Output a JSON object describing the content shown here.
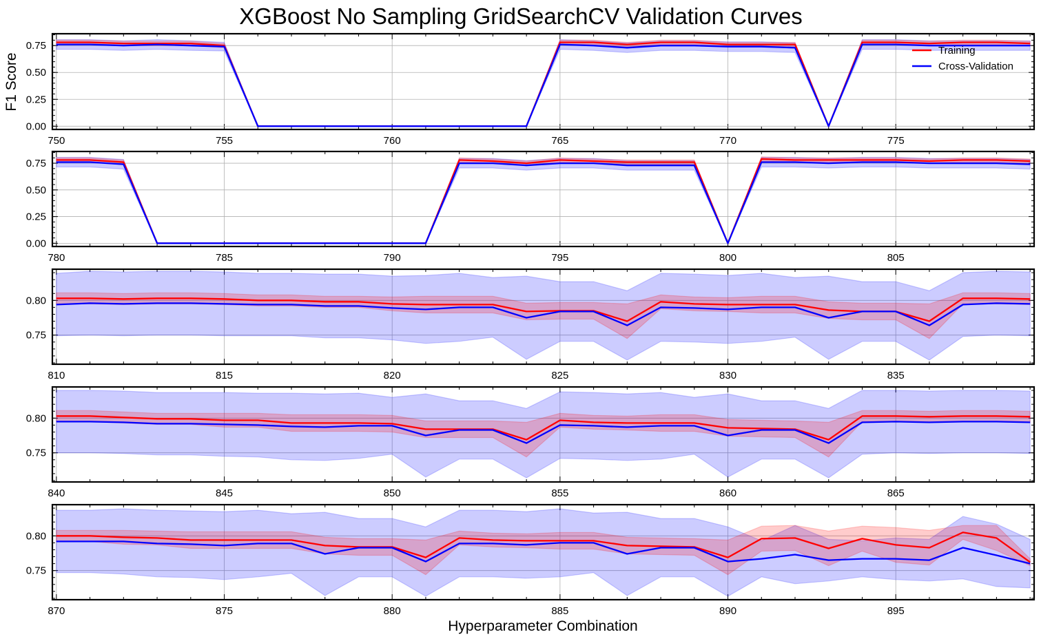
{
  "chart_data": {
    "type": "line",
    "title": "XGBoost No Sampling GridSearchCV Validation Curves",
    "xlabel": "Hyperparameter Combination",
    "ylabel": "F1 Score",
    "legend": {
      "placement": "top-right",
      "entries": [
        "Training",
        "Cross-Validation"
      ]
    },
    "colors": {
      "Training": "#ff0000",
      "Cross-Validation": "#0000ff"
    },
    "grid": true,
    "panels": [
      {
        "x_start": 750,
        "xticks": [
          750,
          755,
          760,
          765,
          770,
          775
        ],
        "ylim": [
          -0.03,
          0.86
        ],
        "yticks": [
          "0.00",
          "0.25",
          "0.50",
          "0.75"
        ],
        "series": [
          {
            "name": "Training",
            "values": [
              0.78,
              0.78,
              0.77,
              0.77,
              0.77,
              0.75,
              0,
              0,
              0,
              0,
              0,
              0,
              0,
              0,
              0,
              0.78,
              0.78,
              0.76,
              0.78,
              0.78,
              0.76,
              0.76,
              0.76,
              0,
              0.78,
              0.78,
              0.77,
              0.78,
              0.78,
              0.77
            ],
            "std": [
              0.02,
              0.02,
              0.02,
              0.02,
              0.02,
              0.02,
              0,
              0,
              0,
              0,
              0,
              0,
              0,
              0,
              0,
              0.02,
              0.02,
              0.02,
              0.02,
              0.02,
              0.02,
              0.02,
              0.02,
              0,
              0.02,
              0.02,
              0.02,
              0.02,
              0.02,
              0.02
            ]
          },
          {
            "name": "Cross-Validation",
            "values": [
              0.76,
              0.76,
              0.75,
              0.76,
              0.75,
              0.74,
              0,
              0,
              0,
              0,
              0,
              0,
              0,
              0,
              0,
              0.76,
              0.75,
              0.73,
              0.75,
              0.75,
              0.74,
              0.74,
              0.73,
              0,
              0.76,
              0.76,
              0.75,
              0.75,
              0.75,
              0.75
            ],
            "std": [
              0.045,
              0.045,
              0.045,
              0.045,
              0.045,
              0.04,
              0,
              0,
              0,
              0,
              0,
              0,
              0,
              0,
              0,
              0.045,
              0.045,
              0.045,
              0.045,
              0.045,
              0.045,
              0.045,
              0.045,
              0,
              0.045,
              0.045,
              0.045,
              0.045,
              0.045,
              0.045
            ]
          }
        ]
      },
      {
        "x_start": 780,
        "xticks": [
          780,
          785,
          790,
          795,
          800,
          805
        ],
        "ylim": [
          -0.03,
          0.86
        ],
        "yticks": [
          "0.00",
          "0.25",
          "0.50",
          "0.75"
        ],
        "series": [
          {
            "name": "Training",
            "values": [
              0.78,
              0.78,
              0.76,
              0,
              0,
              0,
              0,
              0,
              0,
              0,
              0,
              0,
              0.78,
              0.77,
              0.75,
              0.78,
              0.77,
              0.76,
              0.76,
              0.76,
              0,
              0.79,
              0.78,
              0.78,
              0.78,
              0.78,
              0.77,
              0.78,
              0.78,
              0.77
            ],
            "std": [
              0.02,
              0.02,
              0.02,
              0,
              0,
              0,
              0,
              0,
              0,
              0,
              0,
              0,
              0.02,
              0.02,
              0.02,
              0.02,
              0.02,
              0.02,
              0.02,
              0.02,
              0,
              0.02,
              0.02,
              0.02,
              0.02,
              0.02,
              0.02,
              0.02,
              0.02,
              0.02
            ]
          },
          {
            "name": "Cross-Validation",
            "values": [
              0.76,
              0.76,
              0.74,
              0,
              0,
              0,
              0,
              0,
              0,
              0,
              0,
              0,
              0.75,
              0.75,
              0.73,
              0.75,
              0.75,
              0.73,
              0.73,
              0.73,
              0,
              0.76,
              0.76,
              0.75,
              0.76,
              0.76,
              0.75,
              0.75,
              0.75,
              0.74
            ],
            "std": [
              0.045,
              0.045,
              0.045,
              0,
              0,
              0,
              0,
              0,
              0,
              0,
              0,
              0,
              0.045,
              0.045,
              0.045,
              0.045,
              0.045,
              0.045,
              0.045,
              0.045,
              0,
              0.045,
              0.045,
              0.045,
              0.045,
              0.045,
              0.045,
              0.045,
              0.045,
              0.045
            ]
          }
        ]
      },
      {
        "x_start": 810,
        "xticks": [
          810,
          815,
          820,
          825,
          830,
          835
        ],
        "ylim": [
          0.708,
          0.845
        ],
        "yticks": [
          "0.75",
          "0.80"
        ],
        "series": [
          {
            "name": "Training",
            "values": [
              0.803,
              0.803,
              0.802,
              0.803,
              0.803,
              0.802,
              0.8,
              0.8,
              0.798,
              0.798,
              0.795,
              0.794,
              0.794,
              0.794,
              0.784,
              0.785,
              0.785,
              0.77,
              0.798,
              0.795,
              0.794,
              0.794,
              0.794,
              0.786,
              0.784,
              0.784,
              0.77,
              0.803,
              0.803,
              0.802
            ],
            "std": [
              0.008,
              0.008,
              0.008,
              0.008,
              0.008,
              0.008,
              0.008,
              0.008,
              0.008,
              0.008,
              0.01,
              0.012,
              0.012,
              0.012,
              0.012,
              0.012,
              0.012,
              0.025,
              0.01,
              0.01,
              0.01,
              0.012,
              0.012,
              0.012,
              0.012,
              0.012,
              0.025,
              0.008,
              0.008,
              0.008
            ]
          },
          {
            "name": "Cross-Validation",
            "values": [
              0.794,
              0.796,
              0.795,
              0.796,
              0.796,
              0.795,
              0.794,
              0.794,
              0.792,
              0.792,
              0.789,
              0.787,
              0.79,
              0.79,
              0.775,
              0.784,
              0.784,
              0.764,
              0.79,
              0.789,
              0.787,
              0.79,
              0.79,
              0.775,
              0.784,
              0.784,
              0.764,
              0.794,
              0.796,
              0.795
            ],
            "std": [
              0.045,
              0.046,
              0.046,
              0.046,
              0.046,
              0.046,
              0.045,
              0.045,
              0.046,
              0.046,
              0.046,
              0.049,
              0.049,
              0.043,
              0.06,
              0.043,
              0.043,
              0.05,
              0.049,
              0.049,
              0.049,
              0.049,
              0.043,
              0.06,
              0.043,
              0.043,
              0.05,
              0.046,
              0.046,
              0.046
            ]
          }
        ]
      },
      {
        "x_start": 840,
        "xticks": [
          840,
          845,
          850,
          855,
          860,
          865
        ],
        "ylim": [
          0.708,
          0.845
        ],
        "yticks": [
          "0.75",
          "0.80"
        ],
        "series": [
          {
            "name": "Training",
            "values": [
              0.803,
              0.803,
              0.801,
              0.799,
              0.799,
              0.797,
              0.797,
              0.793,
              0.793,
              0.793,
              0.792,
              0.784,
              0.784,
              0.784,
              0.769,
              0.797,
              0.794,
              0.793,
              0.793,
              0.793,
              0.786,
              0.785,
              0.784,
              0.769,
              0.803,
              0.803,
              0.802,
              0.803,
              0.803,
              0.802
            ],
            "std": [
              0.008,
              0.008,
              0.008,
              0.008,
              0.008,
              0.01,
              0.01,
              0.012,
              0.012,
              0.012,
              0.012,
              0.012,
              0.012,
              0.012,
              0.025,
              0.01,
              0.01,
              0.01,
              0.012,
              0.012,
              0.012,
              0.012,
              0.012,
              0.025,
              0.008,
              0.008,
              0.008,
              0.008,
              0.008,
              0.008
            ]
          },
          {
            "name": "Cross-Validation",
            "values": [
              0.795,
              0.795,
              0.794,
              0.792,
              0.792,
              0.791,
              0.79,
              0.788,
              0.787,
              0.789,
              0.789,
              0.775,
              0.783,
              0.783,
              0.764,
              0.79,
              0.789,
              0.787,
              0.789,
              0.789,
              0.775,
              0.783,
              0.783,
              0.764,
              0.794,
              0.795,
              0.794,
              0.795,
              0.795,
              0.794
            ],
            "std": [
              0.045,
              0.045,
              0.045,
              0.045,
              0.045,
              0.046,
              0.046,
              0.048,
              0.048,
              0.047,
              0.041,
              0.06,
              0.042,
              0.042,
              0.05,
              0.048,
              0.048,
              0.048,
              0.048,
              0.041,
              0.06,
              0.042,
              0.042,
              0.05,
              0.046,
              0.045,
              0.045,
              0.045,
              0.045,
              0.045
            ]
          }
        ]
      },
      {
        "x_start": 870,
        "xticks": [
          870,
          875,
          880,
          885,
          890,
          895
        ],
        "ylim": [
          0.708,
          0.845
        ],
        "yticks": [
          "0.75",
          "0.80"
        ],
        "series": [
          {
            "name": "Training",
            "values": [
              0.8,
              0.8,
              0.798,
              0.797,
              0.794,
              0.794,
              0.794,
              0.794,
              0.786,
              0.784,
              0.784,
              0.769,
              0.797,
              0.794,
              0.793,
              0.793,
              0.793,
              0.786,
              0.785,
              0.784,
              0.769,
              0.796,
              0.797,
              0.782,
              0.796,
              0.787,
              0.783,
              0.805,
              0.797,
              0.762
            ],
            "std": [
              0.008,
              0.008,
              0.01,
              0.01,
              0.012,
              0.012,
              0.012,
              0.012,
              0.012,
              0.012,
              0.012,
              0.025,
              0.01,
              0.01,
              0.01,
              0.012,
              0.012,
              0.012,
              0.012,
              0.012,
              0.025,
              0.018,
              0.018,
              0.025,
              0.018,
              0.025,
              0.025,
              0.01,
              0.018,
              0.005
            ]
          },
          {
            "name": "Cross-Validation",
            "values": [
              0.792,
              0.792,
              0.792,
              0.789,
              0.788,
              0.786,
              0.789,
              0.789,
              0.774,
              0.783,
              0.783,
              0.763,
              0.789,
              0.789,
              0.787,
              0.79,
              0.79,
              0.774,
              0.783,
              0.783,
              0.763,
              0.767,
              0.773,
              0.765,
              0.767,
              0.767,
              0.765,
              0.783,
              0.772,
              0.76
            ],
            "std": [
              0.045,
              0.045,
              0.047,
              0.048,
              0.048,
              0.049,
              0.048,
              0.043,
              0.06,
              0.042,
              0.042,
              0.05,
              0.048,
              0.048,
              0.048,
              0.049,
              0.043,
              0.06,
              0.042,
              0.042,
              0.05,
              0.026,
              0.042,
              0.03,
              0.026,
              0.03,
              0.03,
              0.045,
              0.045,
              0.035
            ]
          }
        ]
      }
    ]
  }
}
